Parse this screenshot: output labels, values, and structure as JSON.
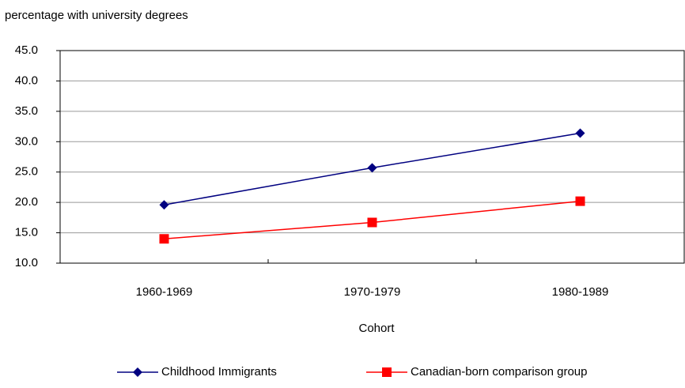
{
  "chart_data": {
    "type": "line",
    "y_axis_label": "percentage with university degrees",
    "x_axis_label": "Cohort",
    "categories": [
      "1960-1969",
      "1970-1979",
      "1980-1989"
    ],
    "series": [
      {
        "name": "Childhood Immigrants",
        "color": "#000080",
        "marker": "diamond",
        "values": [
          19.6,
          25.7,
          31.4
        ]
      },
      {
        "name": "Canadian-born comparison group",
        "color": "#ff0000",
        "marker": "square",
        "values": [
          14.0,
          16.7,
          20.2
        ]
      }
    ],
    "ylim": [
      10,
      45
    ],
    "yticks": [
      {
        "value": 10,
        "label": "10.0"
      },
      {
        "value": 15,
        "label": "15.0"
      },
      {
        "value": 20,
        "label": "20.0"
      },
      {
        "value": 25,
        "label": "25.0"
      },
      {
        "value": 30,
        "label": "30.0"
      },
      {
        "value": 35,
        "label": "35.0"
      },
      {
        "value": 40,
        "label": "40.0"
      },
      {
        "value": 45,
        "label": "45.0"
      }
    ],
    "grid": true,
    "legend": "bottom"
  }
}
